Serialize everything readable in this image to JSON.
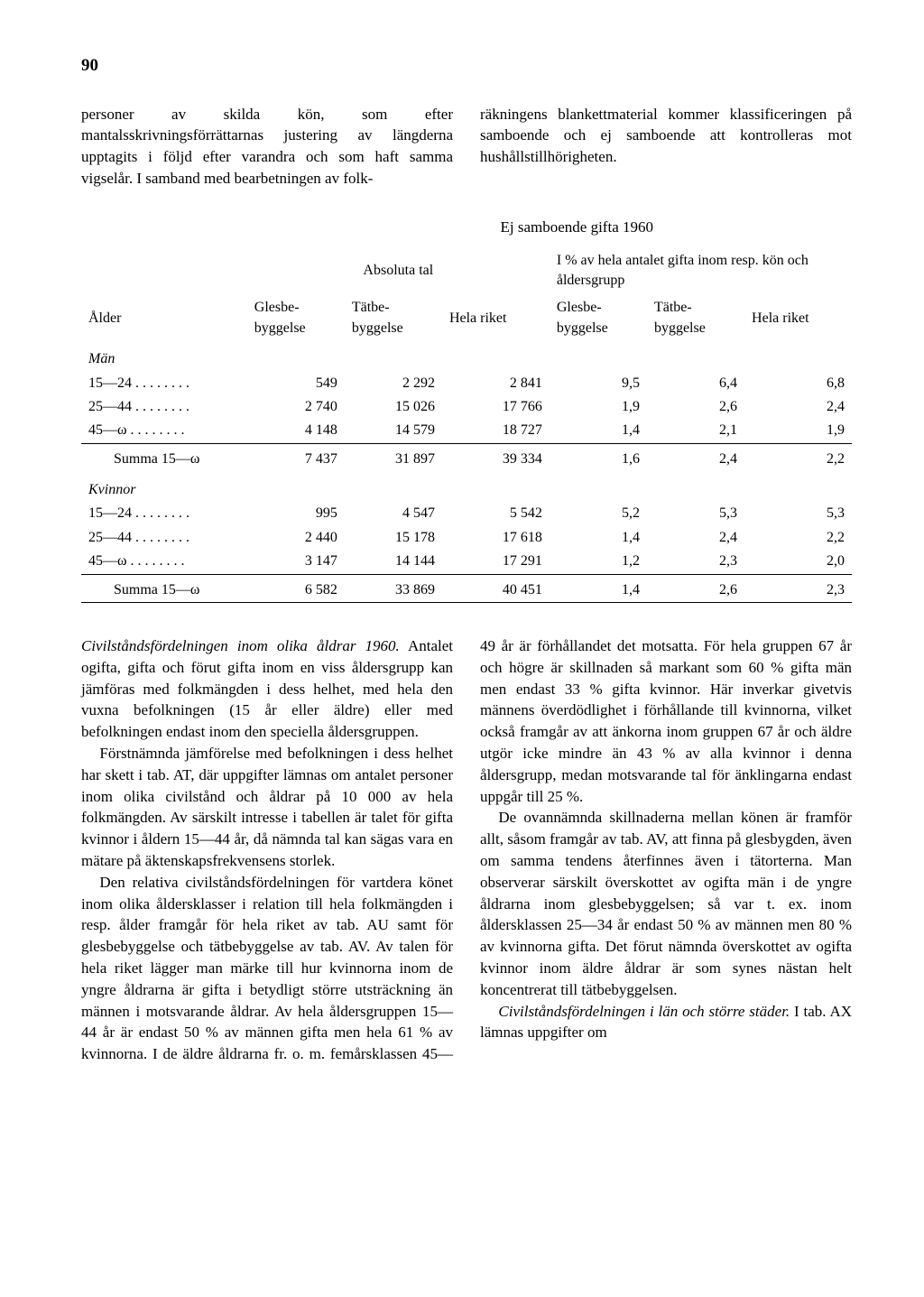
{
  "page_number": "90",
  "intro": {
    "left": "personer av skilda kön, som efter mantalsskrivningsförrättarnas justering av längderna upptagits i följd efter varandra och som haft samma vigselår. I samband med bearbetningen av folk-",
    "right": "räkningens blankettmaterial kommer klassificeringen på samboende och ej samboende att kontrolleras mot hushållstillhörigheten."
  },
  "table": {
    "title": "Ej samboende gifta 1960",
    "super_left": "Absoluta tal",
    "super_right": "I % av hela antalet gifta inom resp. kön och åldersgrupp",
    "col_age": "Ålder",
    "cols": [
      "Glesbe-byggelse",
      "Tätbe-byggelse",
      "Hela riket",
      "Glesbe-byggelse",
      "Tätbe-byggelse",
      "Hela riket"
    ],
    "section_men": "Män",
    "section_women": "Kvinnor",
    "dots": "  . . . . . . . .",
    "men_rows": [
      {
        "age": "15—24",
        "v": [
          "549",
          "2 292",
          "2 841",
          "9,5",
          "6,4",
          "6,8"
        ]
      },
      {
        "age": "25—44",
        "v": [
          "2 740",
          "15 026",
          "17 766",
          "1,9",
          "2,6",
          "2,4"
        ]
      },
      {
        "age": "45—ω",
        "v": [
          "4 148",
          "14 579",
          "18 727",
          "1,4",
          "2,1",
          "1,9"
        ]
      }
    ],
    "men_sum": {
      "age": "Summa 15—ω",
      "v": [
        "7 437",
        "31 897",
        "39 334",
        "1,6",
        "2,4",
        "2,2"
      ]
    },
    "women_rows": [
      {
        "age": "15—24",
        "v": [
          "995",
          "4 547",
          "5 542",
          "5,2",
          "5,3",
          "5,3"
        ]
      },
      {
        "age": "25—44",
        "v": [
          "2 440",
          "15 178",
          "17 618",
          "1,4",
          "2,4",
          "2,2"
        ]
      },
      {
        "age": "45—ω",
        "v": [
          "3 147",
          "14 144",
          "17 291",
          "1,2",
          "2,3",
          "2,0"
        ]
      }
    ],
    "women_sum": {
      "age": "Summa 15—ω",
      "v": [
        "6 582",
        "33 869",
        "40 451",
        "1,4",
        "2,6",
        "2,3"
      ]
    }
  },
  "body": {
    "p1_i": "Civilståndsfördelningen inom olika åldrar 1960.",
    "p1": " Antalet ogifta, gifta och förut gifta inom en viss åldersgrupp kan jämföras med folkmängden i dess helhet, med hela den vuxna befolkningen (15 år eller äldre) eller med befolkningen endast inom den speciella åldersgruppen.",
    "p2": "Förstnämnda jämförelse med befolkningen i dess helhet har skett i tab. AT, där uppgifter lämnas om antalet personer inom olika civilstånd och åldrar på 10 000 av hela folkmängden. Av särskilt intresse i tabellen är talet för gifta kvinnor i åldern 15—44 år, då nämnda tal kan sägas vara en mätare på äktenskapsfrekvensens storlek.",
    "p3": "Den relativa civilståndsfördelningen för vartdera könet inom olika åldersklasser i relation till hela folkmängden i resp. ålder framgår för hela riket av tab. AU samt för glesbebyggelse och tätbebyggelse av tab. AV. Av talen för hela riket lägger man märke till hur kvinnorna inom de yngre åldrarna är gifta i betydligt större utsträckning än männen i motsvarande åldrar. Av hela åldersgruppen 15—44 år är endast 50 % av männen gifta men hela 61 % av kvinnorna. I de äldre åldrarna fr. o. m. femårsklassen 45—49 år är förhållandet det motsatta. För hela gruppen 67 år och högre är skillnaden så markant som 60 % gifta män men endast 33 % gifta kvinnor. Här inverkar givetvis männens överdödlighet i förhållande till kvinnorna, vilket också framgår av att änkorna inom gruppen 67 år och äldre utgör icke mindre än 43 % av alla kvinnor i denna åldersgrupp, medan motsvarande tal för änklingarna endast uppgår till 25 %.",
    "p4": "De ovannämnda skillnaderna mellan könen är framför allt, såsom framgår av tab. AV, att finna på glesbygden, även om samma tendens återfinnes även i tätorterna. Man observerar särskilt överskottet av ogifta män i de yngre åldrarna inom glesbebyggelsen; så var t. ex. inom åldersklassen 25—34 år endast 50 % av männen men 80 % av kvinnorna gifta. Det förut nämnda överskottet av ogifta kvinnor inom äldre åldrar är som synes nästan helt koncentrerat till tätbebyggelsen.",
    "p5_i": "Civilståndsfördelningen i län och större städer.",
    "p5": " I tab. AX lämnas uppgifter om"
  }
}
